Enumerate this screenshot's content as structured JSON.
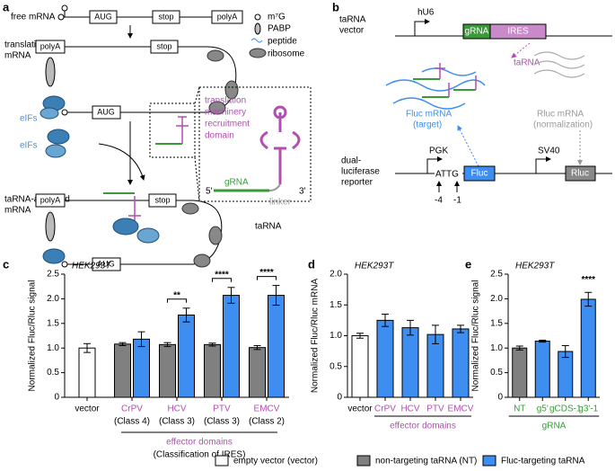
{
  "panel_labels": [
    "a",
    "b",
    "c",
    "d",
    "e"
  ],
  "diagram_a": {
    "free_mrna": "free mRNA",
    "aug": "AUG",
    "stop": "stop",
    "polya": "polyA",
    "translating_mrna": [
      "translating",
      "mRNA"
    ],
    "eifs": "eIFs",
    "activated_mrna": [
      "taRNA-activated",
      "mRNA"
    ],
    "key": [
      "m⁷G",
      "PABP",
      "peptide",
      "ribosome"
    ],
    "inset_domain": [
      "translation",
      "machinery",
      "recruitment",
      "domain"
    ],
    "grna": "gRNA",
    "five": "5'",
    "three": "3'",
    "linker": "linker",
    "tarna": "taRNA"
  },
  "diagram_b": {
    "vector": [
      "taRNA",
      "vector"
    ],
    "hu6": "hU6",
    "grna": "gRNA",
    "ires": "IRES",
    "tarna": "taRNA",
    "fluc_mrna": [
      "Fluc mRNA",
      "(target)"
    ],
    "rluc_mrna": [
      "Rluc mRNA",
      "(normalization)"
    ],
    "reporter": [
      "dual-",
      "luciferase",
      "reporter"
    ],
    "pgk": "PGK",
    "attg": "ATTG",
    "fluc": "Fluc",
    "sv40": "SV40",
    "rluc": "Rluc",
    "pos4": "-4",
    "pos1": "-1"
  },
  "chart_data": [
    {
      "type": "bar",
      "subtitle": "HEK293T",
      "ylabel": "Normalized Fluc/Rluc signal",
      "categories": [
        "vector",
        "CrPV",
        "HCV",
        "PTV",
        "EMCV"
      ],
      "category_sublabels": [
        null,
        "(Class 4)",
        "(Class 3)",
        "(Class 3)",
        "(Class 2)"
      ],
      "category_colors": [
        "#000000",
        "#b04fb0",
        "#b04fb0",
        "#b04fb0",
        "#b04fb0"
      ],
      "group_label": "effector domains",
      "group_sublabel": "(Classification of IRES)",
      "series": [
        {
          "name": "empty vector (vector)",
          "color": "#ffffff",
          "values": [
            1.0,
            null,
            null,
            null,
            null
          ],
          "errors": [
            0.09,
            null,
            null,
            null,
            null
          ]
        },
        {
          "name": "non-targeting taRNA (NT)",
          "color": "#808080",
          "values": [
            null,
            1.08,
            1.07,
            1.07,
            1.01
          ],
          "errors": [
            null,
            0.03,
            0.04,
            0.03,
            0.04
          ]
        },
        {
          "name": "Fluc-targeting taRNA",
          "color": "#3d8ef0",
          "values": [
            null,
            1.18,
            1.67,
            2.07,
            2.07
          ],
          "errors": [
            null,
            0.15,
            0.14,
            0.16,
            0.2
          ]
        }
      ],
      "significance": [
        null,
        null,
        "**",
        "****",
        "****"
      ],
      "ylim": [
        0,
        2.5
      ],
      "yticks": [
        0,
        0.5,
        {
          "value": 1,
          "label": "1.0"
        },
        1.5,
        {
          "value": 2,
          "label": "2.0"
        },
        2.5
      ]
    },
    {
      "type": "bar",
      "subtitle": "HEK293T",
      "ylabel": "Normalized Fluc/Rluc mRNA",
      "categories": [
        "vector",
        "CrPV",
        "HCV",
        "PTV",
        "EMCV"
      ],
      "category_colors": [
        "#000000",
        "#b04fb0",
        "#b04fb0",
        "#b04fb0",
        "#b04fb0"
      ],
      "group_label": "effector domains",
      "series": [
        {
          "color": "#ffffff",
          "values": [
            1.0,
            null,
            null,
            null,
            null
          ],
          "errors": [
            0.04,
            null,
            null,
            null,
            null
          ]
        },
        {
          "color": "#3d8ef0",
          "values": [
            null,
            1.25,
            1.13,
            1.02,
            1.11
          ],
          "errors": [
            null,
            0.1,
            0.12,
            0.15,
            0.06
          ]
        }
      ],
      "ylim": [
        0,
        2.0
      ],
      "yticks": [
        0,
        0.5,
        {
          "value": 1,
          "label": "1.0"
        },
        1.5,
        {
          "value": 2,
          "label": "2.0"
        }
      ]
    },
    {
      "type": "bar",
      "subtitle": "HEK293T",
      "ylabel": "Normalized Fluc/Rluc signal",
      "categories": [
        "NT",
        "g5'",
        "gCDS-1",
        "g3'-1"
      ],
      "category_colors": [
        "#3a9a3a",
        "#3a9a3a",
        "#3a9a3a",
        "#3a9a3a"
      ],
      "group_label": "gRNA",
      "series": [
        {
          "color": "#808080",
          "values": [
            1.0,
            null,
            null,
            null
          ],
          "errors": [
            0.04,
            null,
            null,
            null
          ]
        },
        {
          "color": "#3d8ef0",
          "values": [
            null,
            1.14,
            0.93,
            1.99
          ],
          "errors": [
            null,
            0.02,
            0.12,
            0.14
          ]
        }
      ],
      "significance": [
        null,
        null,
        null,
        "****"
      ],
      "ylim": [
        0,
        2.5
      ],
      "yticks": [
        0,
        0.5,
        {
          "value": 1,
          "label": "1.0"
        },
        1.5,
        {
          "value": 2,
          "label": "2.0"
        },
        2.5
      ]
    }
  ]
}
